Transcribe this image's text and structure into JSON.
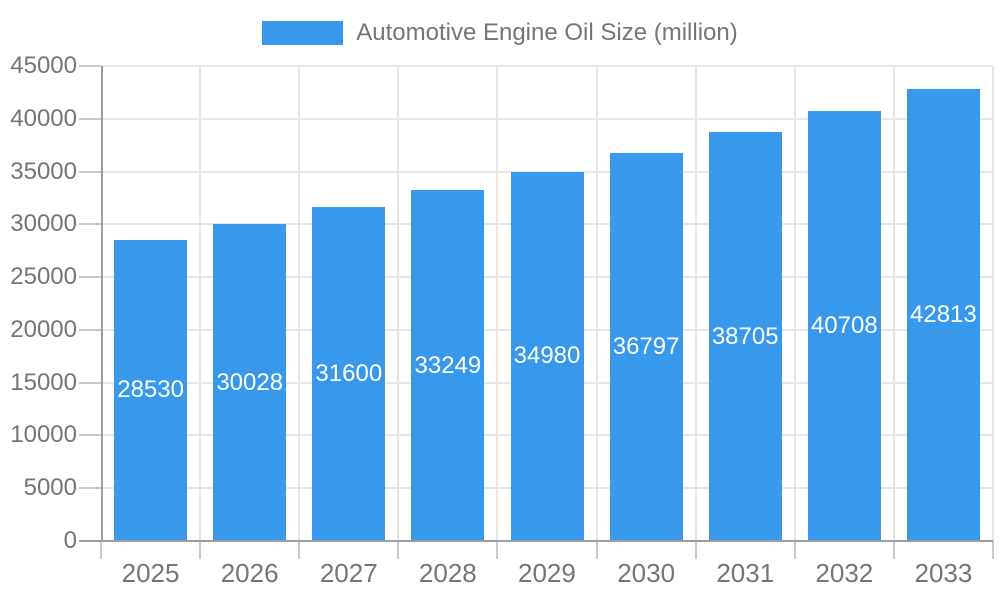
{
  "chart_data": {
    "type": "bar",
    "title": "",
    "categories": [
      "2025",
      "2026",
      "2027",
      "2028",
      "2029",
      "2030",
      "2031",
      "2032",
      "2033"
    ],
    "series": [
      {
        "name": "Automotive Engine Oil Size (million)",
        "values": [
          28530,
          30028,
          31600,
          33249,
          34980,
          36797,
          38705,
          40708,
          42813
        ]
      }
    ],
    "xlabel": "",
    "ylabel": "",
    "ylim": [
      0,
      45000
    ],
    "yticks": [
      0,
      5000,
      10000,
      15000,
      20000,
      25000,
      30000,
      35000,
      40000,
      45000
    ],
    "grid": true,
    "legend_position": "top-center",
    "bar_labels_visible": true,
    "colors": {
      "bar": "#3899EC",
      "bar_label_text": "#FFFFFF",
      "axis_line": "#9E9E9E",
      "gridline": "#E6E6E6",
      "tick": "#C9C9C9",
      "axis_text": "#757575",
      "legend_text": "#757575",
      "background": "#FFFFFF"
    }
  }
}
